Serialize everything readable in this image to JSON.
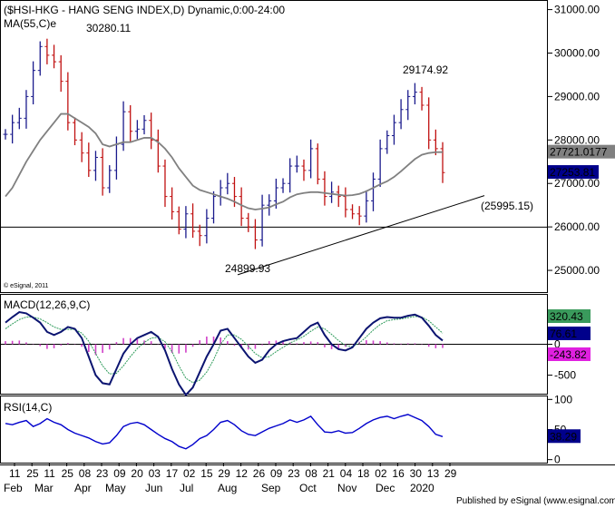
{
  "header": {
    "title": "($HSI-HKG - HANG SENG INDEX,D) Dynamic,0:00-24:00",
    "ma_label": "MA(55,C)e"
  },
  "annotations": {
    "high_1": "30280.11",
    "high_2": "29174.92",
    "low_1": "24899.93",
    "support": "(25995.15)"
  },
  "copyright": "© eSignal, 2011",
  "footer": "Published by eSignal (www.esignal.com)",
  "colors": {
    "up_bar": "#1a1a8c",
    "down_bar": "#c01010",
    "ma_line": "#808080",
    "macd_line": "#0b1470",
    "signal_line": "#2e9b5a",
    "histogram": "#d040c8",
    "rsi_line": "#0000cc",
    "ma_tag": "#808080",
    "signal_tag": "#3a9a5c",
    "hist_tag": "#e020e0",
    "price_tag": "#00008b"
  },
  "chart_data": [
    {
      "type": "ohlc",
      "name": "price",
      "ylim": [
        24500,
        31200
      ],
      "y_ticks": [
        "31000.00",
        "30000.00",
        "29000.00",
        "28000.00",
        "27000.00",
        "26000.00",
        "25000.00"
      ],
      "y_tick_values": [
        31000,
        30000,
        29000,
        28000,
        27000,
        26000,
        25000
      ],
      "tags": {
        "ma_value": "27721.0177",
        "last_price": "27253.81"
      },
      "horizontal_line": 25995.15,
      "trendline": {
        "from": [
          "2019-08-15",
          24899.93
        ],
        "to": [
          "2020-01-31",
          26720
        ]
      },
      "highs": {
        "y2019_apr": 30280.11,
        "dec_jan": 29174.92
      },
      "low": 24899.93,
      "close_points": [
        28130,
        28400,
        28500,
        29000,
        29600,
        30150,
        29950,
        29800,
        29350,
        28400,
        28000,
        27700,
        27300,
        27600,
        26900,
        27300,
        27900,
        28650,
        28200,
        28250,
        28450,
        28000,
        27400,
        26700,
        26350,
        25950,
        26300,
        25900,
        25800,
        26200,
        26700,
        26900,
        27000,
        26700,
        26200,
        26000,
        25700,
        26500,
        26600,
        26900,
        27000,
        27400,
        27400,
        27300,
        27800,
        27100,
        26700,
        26800,
        26700,
        26400,
        26300,
        26250,
        26600,
        27100,
        27800,
        28100,
        28400,
        28700,
        29000,
        29100,
        28800,
        28000,
        27800,
        27250
      ],
      "ma_points": [
        26700,
        26900,
        27200,
        27500,
        27750,
        28000,
        28200,
        28400,
        28600,
        28600,
        28500,
        28400,
        28300,
        28150,
        27900,
        27850,
        27900,
        27950,
        27950,
        28000,
        28050,
        28050,
        27950,
        27800,
        27600,
        27350,
        27150,
        26950,
        26850,
        26800,
        26750,
        26700,
        26650,
        26580,
        26500,
        26430,
        26400,
        26420,
        26450,
        26520,
        26580,
        26680,
        26750,
        26780,
        26800,
        26800,
        26780,
        26760,
        26740,
        26720,
        26730,
        26760,
        26820,
        26900,
        26980,
        27050,
        27150,
        27280,
        27420,
        27560,
        27660,
        27700,
        27720,
        27721
      ]
    },
    {
      "type": "line",
      "name": "MACD",
      "label": "MACD(12,26,9,C)",
      "ylim": [
        -800,
        800
      ],
      "y_ticks": [
        "500",
        "0",
        "-500"
      ],
      "y_tick_values": [
        500,
        0,
        -500
      ],
      "tags": {
        "macd": "320.43",
        "signal": "76.61",
        "hist": "-243.82"
      },
      "macd_points": [
        350,
        440,
        520,
        500,
        430,
        350,
        200,
        150,
        200,
        280,
        250,
        100,
        -200,
        -500,
        -630,
        -650,
        -400,
        -150,
        0,
        100,
        150,
        200,
        120,
        -100,
        -400,
        -650,
        -820,
        -700,
        -450,
        -200,
        0,
        220,
        250,
        100,
        -50,
        -200,
        -300,
        -250,
        -100,
        0,
        50,
        80,
        100,
        200,
        300,
        350,
        150,
        0,
        -80,
        -100,
        -50,
        100,
        250,
        350,
        420,
        440,
        430,
        430,
        460,
        480,
        430,
        300,
        150,
        60
      ],
      "signal_points": [
        250,
        330,
        400,
        440,
        440,
        410,
        350,
        280,
        240,
        240,
        240,
        180,
        50,
        -150,
        -350,
        -480,
        -470,
        -350,
        -200,
        -70,
        30,
        100,
        110,
        40,
        -120,
        -350,
        -550,
        -620,
        -580,
        -450,
        -250,
        0,
        150,
        150,
        80,
        -30,
        -150,
        -220,
        -200,
        -120,
        -50,
        20,
        70,
        130,
        210,
        280,
        250,
        160,
        60,
        -20,
        -40,
        20,
        120,
        230,
        320,
        380,
        400,
        410,
        430,
        450,
        440,
        380,
        280,
        180
      ]
    },
    {
      "type": "line",
      "name": "RSI",
      "label": "RSI(14,C)",
      "ylim": [
        -5,
        105
      ],
      "y_ticks": [
        "100",
        "50",
        "0"
      ],
      "y_tick_values": [
        100,
        50,
        0
      ],
      "tags": {
        "rsi": "38.29"
      },
      "rsi_points": [
        60,
        58,
        62,
        65,
        55,
        60,
        68,
        62,
        58,
        50,
        44,
        40,
        36,
        30,
        26,
        28,
        40,
        55,
        60,
        62,
        58,
        50,
        42,
        35,
        30,
        22,
        18,
        25,
        35,
        40,
        50,
        62,
        65,
        58,
        48,
        42,
        40,
        46,
        52,
        56,
        60,
        66,
        62,
        66,
        72,
        58,
        46,
        45,
        48,
        44,
        45,
        52,
        60,
        66,
        70,
        72,
        68,
        72,
        75,
        70,
        65,
        55,
        42,
        38.29
      ]
    }
  ],
  "x_axis": {
    "days": [
      "11",
      "25",
      "11",
      "25",
      "08",
      "23",
      "09",
      "20",
      "03",
      "17",
      "02",
      "15",
      "29",
      "12",
      "26",
      "09",
      "23",
      "08",
      "21",
      "04",
      "18",
      "02",
      "16",
      "30",
      "13",
      "29"
    ],
    "months": [
      "Feb",
      "Mar",
      "Apr",
      "May",
      "Jun",
      "Jul",
      "Aug",
      "Sep",
      "Oct",
      "Nov",
      "Dec",
      "2020"
    ]
  }
}
